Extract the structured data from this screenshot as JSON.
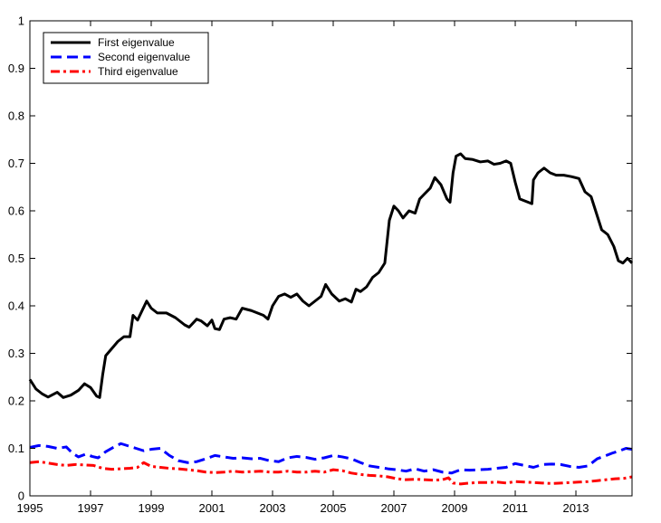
{
  "chart_data": {
    "type": "line",
    "title": "",
    "xlabel": "",
    "ylabel": "",
    "xlim": [
      1995,
      2014.85
    ],
    "ylim": [
      0,
      1
    ],
    "x_ticks": [
      1995,
      1997,
      1999,
      2001,
      2003,
      2005,
      2007,
      2009,
      2011,
      2013
    ],
    "x_tick_labels": [
      "1995",
      "1997",
      "1999",
      "2001",
      "2003",
      "2005",
      "2007",
      "2009",
      "2011",
      "2013"
    ],
    "y_ticks": [
      0,
      0.1,
      0.2,
      0.3,
      0.4,
      0.5,
      0.6,
      0.7,
      0.8,
      0.9,
      1
    ],
    "y_tick_labels": [
      "0",
      "0.1",
      "0.2",
      "0.3",
      "0.4",
      "0.5",
      "0.6",
      "0.7",
      "0.8",
      "0.9",
      "1"
    ],
    "grid": false,
    "legend_position": "top-left",
    "series": [
      {
        "name": "First eigenvalue",
        "color": "#000000",
        "dash": "solid",
        "points": [
          [
            1995.0,
            0.245
          ],
          [
            1995.2,
            0.225
          ],
          [
            1995.4,
            0.215
          ],
          [
            1995.6,
            0.208
          ],
          [
            1995.9,
            0.218
          ],
          [
            1996.1,
            0.207
          ],
          [
            1996.35,
            0.212
          ],
          [
            1996.6,
            0.222
          ],
          [
            1996.8,
            0.236
          ],
          [
            1997.0,
            0.228
          ],
          [
            1997.2,
            0.21
          ],
          [
            1997.3,
            0.207
          ],
          [
            1997.4,
            0.255
          ],
          [
            1997.5,
            0.295
          ],
          [
            1997.7,
            0.31
          ],
          [
            1997.9,
            0.325
          ],
          [
            1998.1,
            0.335
          ],
          [
            1998.3,
            0.335
          ],
          [
            1998.4,
            0.38
          ],
          [
            1998.55,
            0.37
          ],
          [
            1998.7,
            0.39
          ],
          [
            1998.85,
            0.41
          ],
          [
            1999.0,
            0.395
          ],
          [
            1999.2,
            0.385
          ],
          [
            1999.5,
            0.385
          ],
          [
            1999.8,
            0.375
          ],
          [
            2000.1,
            0.36
          ],
          [
            2000.25,
            0.355
          ],
          [
            2000.5,
            0.372
          ],
          [
            2000.65,
            0.368
          ],
          [
            2000.85,
            0.358
          ],
          [
            2001.0,
            0.37
          ],
          [
            2001.1,
            0.352
          ],
          [
            2001.25,
            0.35
          ],
          [
            2001.4,
            0.372
          ],
          [
            2001.6,
            0.375
          ],
          [
            2001.8,
            0.372
          ],
          [
            2002.0,
            0.395
          ],
          [
            2002.3,
            0.39
          ],
          [
            2002.5,
            0.385
          ],
          [
            2002.7,
            0.38
          ],
          [
            2002.85,
            0.372
          ],
          [
            2003.0,
            0.4
          ],
          [
            2003.2,
            0.42
          ],
          [
            2003.4,
            0.425
          ],
          [
            2003.6,
            0.418
          ],
          [
            2003.8,
            0.425
          ],
          [
            2004.0,
            0.41
          ],
          [
            2004.2,
            0.4
          ],
          [
            2004.4,
            0.41
          ],
          [
            2004.6,
            0.42
          ],
          [
            2004.75,
            0.445
          ],
          [
            2004.95,
            0.425
          ],
          [
            2005.2,
            0.41
          ],
          [
            2005.4,
            0.415
          ],
          [
            2005.6,
            0.408
          ],
          [
            2005.75,
            0.435
          ],
          [
            2005.9,
            0.43
          ],
          [
            2006.1,
            0.44
          ],
          [
            2006.3,
            0.46
          ],
          [
            2006.5,
            0.47
          ],
          [
            2006.7,
            0.49
          ],
          [
            2006.85,
            0.58
          ],
          [
            2007.0,
            0.61
          ],
          [
            2007.15,
            0.6
          ],
          [
            2007.3,
            0.585
          ],
          [
            2007.5,
            0.6
          ],
          [
            2007.7,
            0.595
          ],
          [
            2007.85,
            0.625
          ],
          [
            2008.0,
            0.635
          ],
          [
            2008.2,
            0.648
          ],
          [
            2008.35,
            0.67
          ],
          [
            2008.55,
            0.655
          ],
          [
            2008.75,
            0.625
          ],
          [
            2008.85,
            0.618
          ],
          [
            2008.95,
            0.68
          ],
          [
            2009.05,
            0.715
          ],
          [
            2009.2,
            0.72
          ],
          [
            2009.35,
            0.71
          ],
          [
            2009.6,
            0.708
          ],
          [
            2009.85,
            0.703
          ],
          [
            2010.1,
            0.705
          ],
          [
            2010.3,
            0.698
          ],
          [
            2010.5,
            0.7
          ],
          [
            2010.7,
            0.705
          ],
          [
            2010.85,
            0.7
          ],
          [
            2011.0,
            0.66
          ],
          [
            2011.15,
            0.625
          ],
          [
            2011.35,
            0.62
          ],
          [
            2011.55,
            0.615
          ],
          [
            2011.6,
            0.665
          ],
          [
            2011.75,
            0.68
          ],
          [
            2011.95,
            0.69
          ],
          [
            2012.15,
            0.68
          ],
          [
            2012.35,
            0.675
          ],
          [
            2012.6,
            0.675
          ],
          [
            2012.85,
            0.672
          ],
          [
            2013.1,
            0.668
          ],
          [
            2013.3,
            0.64
          ],
          [
            2013.5,
            0.63
          ],
          [
            2013.65,
            0.6
          ],
          [
            2013.85,
            0.56
          ],
          [
            2014.05,
            0.55
          ],
          [
            2014.25,
            0.525
          ],
          [
            2014.4,
            0.495
          ],
          [
            2014.55,
            0.49
          ],
          [
            2014.7,
            0.5
          ],
          [
            2014.85,
            0.49
          ]
        ]
      },
      {
        "name": "Second eigenvalue",
        "color": "#0000ff",
        "dash": "dashed",
        "points": [
          [
            1995.0,
            0.102
          ],
          [
            1995.3,
            0.106
          ],
          [
            1995.6,
            0.104
          ],
          [
            1995.9,
            0.1
          ],
          [
            1996.2,
            0.103
          ],
          [
            1996.4,
            0.09
          ],
          [
            1996.6,
            0.082
          ],
          [
            1996.85,
            0.088
          ],
          [
            1997.05,
            0.083
          ],
          [
            1997.25,
            0.08
          ],
          [
            1997.5,
            0.093
          ],
          [
            1997.75,
            0.102
          ],
          [
            1998.0,
            0.11
          ],
          [
            1998.25,
            0.105
          ],
          [
            1998.5,
            0.1
          ],
          [
            1998.75,
            0.095
          ],
          [
            1999.0,
            0.098
          ],
          [
            1999.3,
            0.1
          ],
          [
            1999.6,
            0.085
          ],
          [
            1999.9,
            0.074
          ],
          [
            2000.2,
            0.07
          ],
          [
            2000.5,
            0.072
          ],
          [
            2000.8,
            0.078
          ],
          [
            2001.1,
            0.085
          ],
          [
            2001.4,
            0.082
          ],
          [
            2001.7,
            0.079
          ],
          [
            2002.0,
            0.08
          ],
          [
            2002.3,
            0.078
          ],
          [
            2002.6,
            0.079
          ],
          [
            2002.9,
            0.074
          ],
          [
            2003.2,
            0.072
          ],
          [
            2003.5,
            0.08
          ],
          [
            2003.8,
            0.083
          ],
          [
            2004.1,
            0.081
          ],
          [
            2004.4,
            0.077
          ],
          [
            2004.7,
            0.08
          ],
          [
            2005.0,
            0.085
          ],
          [
            2005.3,
            0.082
          ],
          [
            2005.6,
            0.078
          ],
          [
            2005.9,
            0.07
          ],
          [
            2006.2,
            0.063
          ],
          [
            2006.5,
            0.06
          ],
          [
            2006.8,
            0.057
          ],
          [
            2007.1,
            0.055
          ],
          [
            2007.4,
            0.052
          ],
          [
            2007.7,
            0.057
          ],
          [
            2008.0,
            0.052
          ],
          [
            2008.3,
            0.055
          ],
          [
            2008.6,
            0.05
          ],
          [
            2008.9,
            0.048
          ],
          [
            2009.2,
            0.055
          ],
          [
            2009.5,
            0.054
          ],
          [
            2009.8,
            0.055
          ],
          [
            2010.1,
            0.056
          ],
          [
            2010.4,
            0.058
          ],
          [
            2010.7,
            0.06
          ],
          [
            2011.0,
            0.068
          ],
          [
            2011.3,
            0.064
          ],
          [
            2011.6,
            0.06
          ],
          [
            2011.9,
            0.066
          ],
          [
            2012.2,
            0.067
          ],
          [
            2012.5,
            0.066
          ],
          [
            2012.8,
            0.062
          ],
          [
            2013.1,
            0.06
          ],
          [
            2013.4,
            0.063
          ],
          [
            2013.7,
            0.078
          ],
          [
            2014.0,
            0.085
          ],
          [
            2014.2,
            0.09
          ],
          [
            2014.45,
            0.095
          ],
          [
            2014.65,
            0.1
          ],
          [
            2014.85,
            0.098
          ]
        ]
      },
      {
        "name": "Third eigenvalue",
        "color": "#ff0000",
        "dash": "dashdot",
        "points": [
          [
            1995.0,
            0.07
          ],
          [
            1995.3,
            0.072
          ],
          [
            1995.6,
            0.069
          ],
          [
            1995.9,
            0.066
          ],
          [
            1996.2,
            0.064
          ],
          [
            1996.5,
            0.066
          ],
          [
            1996.8,
            0.065
          ],
          [
            1997.1,
            0.064
          ],
          [
            1997.4,
            0.058
          ],
          [
            1997.7,
            0.056
          ],
          [
            1998.0,
            0.057
          ],
          [
            1998.3,
            0.058
          ],
          [
            1998.55,
            0.06
          ],
          [
            1998.75,
            0.07
          ],
          [
            1999.0,
            0.062
          ],
          [
            1999.3,
            0.06
          ],
          [
            1999.6,
            0.058
          ],
          [
            1999.9,
            0.057
          ],
          [
            2000.2,
            0.055
          ],
          [
            2000.5,
            0.053
          ],
          [
            2000.8,
            0.05
          ],
          [
            2001.1,
            0.049
          ],
          [
            2001.4,
            0.05
          ],
          [
            2001.7,
            0.052
          ],
          [
            2002.0,
            0.05
          ],
          [
            2002.3,
            0.051
          ],
          [
            2002.6,
            0.052
          ],
          [
            2002.9,
            0.05
          ],
          [
            2003.2,
            0.05
          ],
          [
            2003.5,
            0.052
          ],
          [
            2003.8,
            0.05
          ],
          [
            2004.1,
            0.05
          ],
          [
            2004.4,
            0.052
          ],
          [
            2004.7,
            0.05
          ],
          [
            2005.0,
            0.055
          ],
          [
            2005.3,
            0.053
          ],
          [
            2005.6,
            0.048
          ],
          [
            2005.9,
            0.045
          ],
          [
            2006.2,
            0.043
          ],
          [
            2006.5,
            0.042
          ],
          [
            2006.8,
            0.04
          ],
          [
            2007.1,
            0.036
          ],
          [
            2007.4,
            0.034
          ],
          [
            2007.7,
            0.035
          ],
          [
            2008.0,
            0.034
          ],
          [
            2008.3,
            0.033
          ],
          [
            2008.6,
            0.034
          ],
          [
            2008.8,
            0.038
          ],
          [
            2008.95,
            0.027
          ],
          [
            2009.2,
            0.025
          ],
          [
            2009.5,
            0.027
          ],
          [
            2009.8,
            0.028
          ],
          [
            2010.1,
            0.028
          ],
          [
            2010.4,
            0.029
          ],
          [
            2010.7,
            0.027
          ],
          [
            2011.0,
            0.03
          ],
          [
            2011.3,
            0.029
          ],
          [
            2011.6,
            0.028
          ],
          [
            2011.9,
            0.027
          ],
          [
            2012.2,
            0.026
          ],
          [
            2012.5,
            0.027
          ],
          [
            2012.8,
            0.028
          ],
          [
            2013.1,
            0.029
          ],
          [
            2013.4,
            0.03
          ],
          [
            2013.7,
            0.032
          ],
          [
            2014.0,
            0.034
          ],
          [
            2014.3,
            0.036
          ],
          [
            2014.6,
            0.037
          ],
          [
            2014.85,
            0.04
          ]
        ]
      }
    ]
  }
}
